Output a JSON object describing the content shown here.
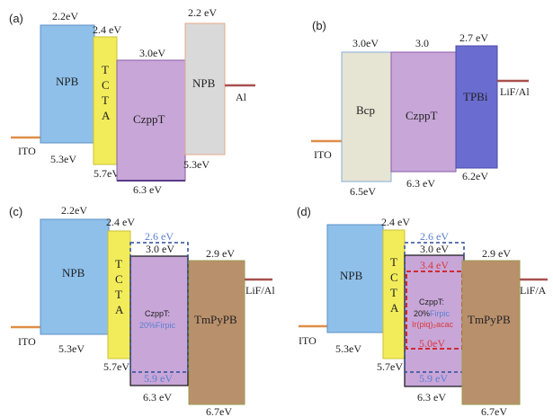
{
  "colors": {
    "npb_blue": "#8ec0ea",
    "tcta_yellow": "#f2ec5a",
    "czppt_purple": "#c8a6d8",
    "npb_gray": "#d9d9d9",
    "bcp_beige": "#e6e4d2",
    "tpbi_blue": "#6a6cd0",
    "tmpypb_brown": "#b9906c",
    "electrode_orange": "#e08e48",
    "electrode_red": "#a8514f",
    "dash_blue": "#2b4d99",
    "dash_red": "#d01a1a",
    "text_blue": "#5a7fd0",
    "text_red": "#d83a3a"
  },
  "panels": {
    "a": {
      "tag": "(a)",
      "ito": "ITO",
      "cathode": "Al",
      "npb1": {
        "name": "NPB",
        "top": "2.2eV",
        "bottom": "5.3eV"
      },
      "tcta": {
        "name": "T\nC\nT\nA",
        "top": "2.4 eV",
        "bottom": "5.7eV"
      },
      "czppt": {
        "name": "CzppT",
        "top": "3.0eV",
        "bottom": "6.3 eV"
      },
      "npb2": {
        "name": "NPB",
        "top": "2.2 eV",
        "bottom": "5.3eV"
      }
    },
    "b": {
      "tag": "(b)",
      "ito": "ITO",
      "cathode": "LiF/Al",
      "bcp": {
        "name": "Bcp",
        "top": "3.0eV",
        "bottom": "6.5eV"
      },
      "czppt": {
        "name": "CzppT",
        "top": "3.0",
        "bottom": "6.3 eV"
      },
      "tpbi": {
        "name": "TPBi",
        "top": "2.7 eV",
        "bottom": "6.2eV"
      }
    },
    "c": {
      "tag": "(c)",
      "ito": "ITO",
      "cathode": "LiF/Al",
      "npb": {
        "name": "NPB",
        "top": "2.2eV",
        "bottom": "5.3eV"
      },
      "tcta": {
        "name": "T\nC\nT\nA",
        "top": "2.4 eV",
        "bottom": "5.7eV"
      },
      "dopant_top": "2.6 eV",
      "eml_top": "3.0 eV",
      "eml_name": "CzppT:",
      "eml_dopant": "20%Firpic",
      "dopant_bottom": "5.9 eV",
      "eml_bottom": "6.3 eV",
      "tmpypb": {
        "name": "TmPyPB",
        "top": "2.9 eV",
        "bottom": "6.7eV"
      }
    },
    "d": {
      "tag": "(d)",
      "ito": "ITO",
      "cathode": "LiF/A",
      "npb": {
        "name": "NPB",
        "top": "",
        "bottom": "5.3eV"
      },
      "tcta": {
        "name": "T\nC\nT\nA",
        "top": "2.4 eV",
        "bottom": "5.7eV"
      },
      "dopant_top": "2.6 eV",
      "eml_top": "3.0 eV",
      "red_top": "3.4 eV",
      "eml_name": "CzppT:",
      "eml_dopant1_prefix": "20%",
      "eml_dopant1": "Firpic",
      "eml_dopant2": "Ir(piq)₂acac",
      "red_bottom": "5.0eV",
      "dopant_bottom": "5.9 eV",
      "eml_bottom": "6.3 eV",
      "tmpypb": {
        "name": "TmPyPB",
        "top": "2.9 eV",
        "bottom": "6.7eV"
      }
    }
  }
}
